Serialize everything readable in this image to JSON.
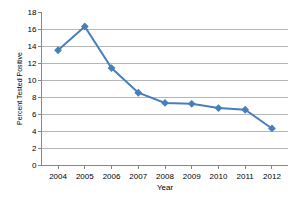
{
  "chart_data": {
    "type": "line",
    "x_label": "Year",
    "y_label": "Percent Tested Positive",
    "categories": [
      "2004",
      "2005",
      "2006",
      "2007",
      "2008",
      "2009",
      "2010",
      "2011",
      "2012"
    ],
    "values": [
      13.5,
      16.3,
      11.4,
      8.5,
      7.3,
      7.2,
      6.7,
      6.5,
      4.3
    ],
    "color": "#4a7ebb",
    "marker": "diamond",
    "ylim": [
      0,
      18
    ],
    "yticks": [
      0,
      2,
      4,
      6,
      8,
      10,
      12,
      14,
      16,
      18
    ],
    "grid": true
  }
}
